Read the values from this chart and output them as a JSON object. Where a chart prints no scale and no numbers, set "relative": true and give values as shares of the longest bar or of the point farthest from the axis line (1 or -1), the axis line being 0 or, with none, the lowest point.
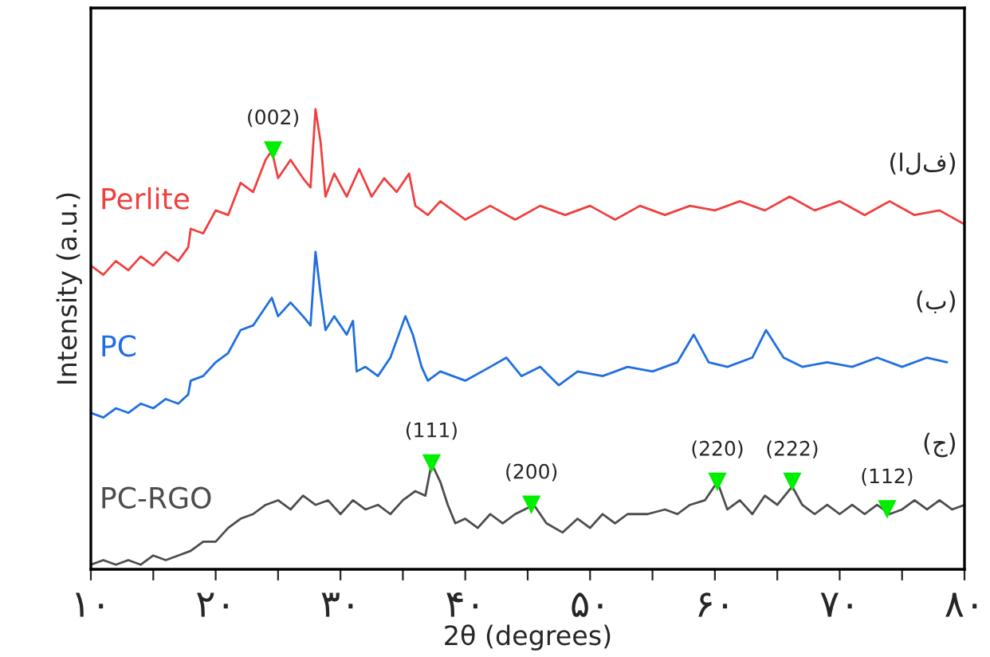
{
  "chart_data": {
    "type": "line",
    "relative": true,
    "xlabel": "2θ (degrees)",
    "ylabel": "Intensity (a.u.)",
    "xlim": [
      10,
      80
    ],
    "xticks": [
      {
        "value": 10,
        "label": "۱۰"
      },
      {
        "value": 15,
        "label": null
      },
      {
        "value": 20,
        "label": "۲۰"
      },
      {
        "value": 25,
        "label": null
      },
      {
        "value": 30,
        "label": "۳۰"
      },
      {
        "value": 35,
        "label": null
      },
      {
        "value": 40,
        "label": "۴۰"
      },
      {
        "value": 45,
        "label": null
      },
      {
        "value": 50,
        "label": "۵۰"
      },
      {
        "value": 55,
        "label": null
      },
      {
        "value": 60,
        "label": "۶۰"
      },
      {
        "value": 65,
        "label": null
      },
      {
        "value": 70,
        "label": "۷۰"
      },
      {
        "value": 75,
        "label": null
      },
      {
        "value": 80,
        "label": "۸۰"
      }
    ],
    "tick_labels": "x",
    "grid": false,
    "legend": false,
    "series": [
      {
        "name": "Perlite",
        "color": "#ef4040",
        "x": [
          10,
          11,
          12,
          13,
          14,
          15,
          16,
          17,
          17.8,
          18,
          19,
          20,
          21,
          22,
          23,
          24,
          24.5,
          25,
          26,
          27,
          27.6,
          28,
          28.4,
          28.8,
          29.5,
          30.5,
          31.5,
          32.5,
          33.5,
          34.5,
          35.5,
          36,
          37,
          38,
          40,
          42,
          44,
          46,
          48,
          50,
          52,
          54,
          56,
          58,
          60,
          62,
          64,
          66,
          68,
          70,
          72,
          74,
          76,
          78,
          80
        ],
        "values": [
          0.66,
          0.64,
          0.67,
          0.65,
          0.68,
          0.66,
          0.69,
          0.67,
          0.7,
          0.74,
          0.73,
          0.78,
          0.77,
          0.84,
          0.82,
          0.89,
          0.91,
          0.85,
          0.89,
          0.85,
          0.83,
          1.0,
          0.93,
          0.81,
          0.86,
          0.81,
          0.87,
          0.81,
          0.85,
          0.82,
          0.86,
          0.79,
          0.77,
          0.8,
          0.76,
          0.79,
          0.76,
          0.79,
          0.77,
          0.79,
          0.76,
          0.79,
          0.77,
          0.79,
          0.78,
          0.8,
          0.78,
          0.81,
          0.78,
          0.8,
          0.77,
          0.8,
          0.77,
          0.78,
          0.75
        ]
      },
      {
        "name": "PC",
        "color": "#1f6fe0",
        "x": [
          10,
          11,
          12,
          13,
          14,
          15,
          16,
          17,
          17.8,
          18,
          19,
          20,
          21,
          22,
          23,
          24,
          24.5,
          25,
          26,
          27,
          27.6,
          28,
          28.4,
          28.8,
          29.5,
          30.5,
          31,
          31.3,
          32,
          33,
          34,
          35.2,
          35.8,
          36.5,
          37,
          38,
          40,
          42,
          43.3,
          44.5,
          46,
          47.5,
          49,
          51,
          53,
          55,
          57,
          58.3,
          59.5,
          61,
          63,
          64.1,
          65.5,
          67,
          69,
          71,
          73,
          75,
          77,
          78.6
        ],
        "values": [
          0.34,
          0.33,
          0.35,
          0.34,
          0.36,
          0.35,
          0.37,
          0.36,
          0.38,
          0.41,
          0.42,
          0.45,
          0.47,
          0.52,
          0.53,
          0.57,
          0.59,
          0.55,
          0.58,
          0.55,
          0.53,
          0.69,
          0.6,
          0.52,
          0.55,
          0.51,
          0.54,
          0.43,
          0.44,
          0.42,
          0.46,
          0.55,
          0.51,
          0.44,
          0.41,
          0.43,
          0.41,
          0.44,
          0.46,
          0.42,
          0.44,
          0.4,
          0.43,
          0.42,
          0.44,
          0.43,
          0.45,
          0.51,
          0.45,
          0.44,
          0.46,
          0.52,
          0.46,
          0.44,
          0.45,
          0.44,
          0.46,
          0.44,
          0.46,
          0.45
        ]
      },
      {
        "name": "PC-RGO",
        "color": "#4d4d4d",
        "x": [
          10,
          11,
          12,
          13,
          14,
          15,
          16,
          17,
          18,
          19,
          20,
          21,
          22,
          23,
          24,
          25,
          26,
          27,
          28,
          29,
          30,
          31,
          32,
          33,
          34,
          35,
          36,
          36.8,
          37.3,
          38,
          38.6,
          39.2,
          40,
          41,
          42,
          43,
          44,
          45.5,
          46.5,
          47.8,
          49,
          50,
          51,
          52,
          53,
          54.6,
          56,
          57,
          58,
          59.2,
          60.2,
          61,
          62,
          63,
          64,
          65,
          66.2,
          67,
          68,
          69,
          70,
          71,
          72,
          73,
          74,
          75,
          76,
          77,
          78,
          79,
          80
        ],
        "values": [
          0.01,
          0.02,
          0.01,
          0.02,
          0.01,
          0.03,
          0.02,
          0.03,
          0.04,
          0.06,
          0.06,
          0.09,
          0.11,
          0.12,
          0.14,
          0.15,
          0.13,
          0.16,
          0.14,
          0.15,
          0.12,
          0.15,
          0.13,
          0.14,
          0.12,
          0.15,
          0.17,
          0.16,
          0.23,
          0.19,
          0.14,
          0.1,
          0.11,
          0.09,
          0.12,
          0.1,
          0.12,
          0.14,
          0.1,
          0.08,
          0.11,
          0.09,
          0.12,
          0.1,
          0.12,
          0.12,
          0.13,
          0.12,
          0.14,
          0.15,
          0.19,
          0.13,
          0.15,
          0.12,
          0.16,
          0.14,
          0.18,
          0.14,
          0.12,
          0.14,
          0.12,
          0.14,
          0.12,
          0.14,
          0.12,
          0.13,
          0.15,
          0.13,
          0.15,
          0.13,
          0.14
        ]
      },
      {
        "type": "scatter",
        "color": "#00ee00",
        "marker": "triangle",
        "x": [
          24.6,
          37.3,
          45.3,
          60.2,
          66.2,
          73.8
        ],
        "values": [
          0.91,
          0.23,
          0.14,
          0.19,
          0.19,
          0.13
        ]
      }
    ],
    "annotations": [
      {
        "text": "(002)",
        "x": 24.6,
        "y": 0.91
      },
      {
        "text": "(111)",
        "x": 37.3,
        "y": 0.23
      },
      {
        "text": "(200)",
        "x": 45.3,
        "y": 0.14
      },
      {
        "text": "(220)",
        "x": 60.2,
        "y": 0.19
      },
      {
        "text": "(222)",
        "x": 66.2,
        "y": 0.19
      },
      {
        "text": "(112)",
        "x": 73.8,
        "y": 0.13
      },
      "(الف)",
      "(ب)",
      "(ج)"
    ]
  }
}
